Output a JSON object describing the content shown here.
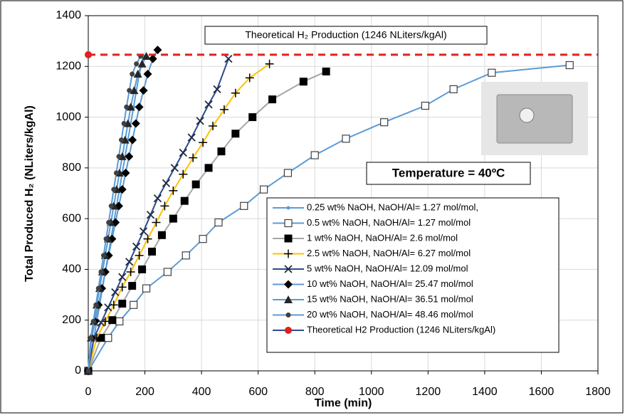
{
  "chart_data": {
    "type": "line",
    "annotation": "Theoretical H₂ Production (1246 NLiters/kgAl)",
    "temperature_label": "Temperature = 40ºC",
    "x_label": "Time (min)",
    "y_label": "Total Produced H₂ (NLiters/kgAl)",
    "xlim": [
      0,
      1800
    ],
    "xticks": [
      0,
      200,
      400,
      600,
      800,
      1000,
      1200,
      1400,
      1600,
      1800
    ],
    "ylim": [
      0,
      1400
    ],
    "yticks": [
      0,
      200,
      400,
      600,
      800,
      1000,
      1200,
      1400
    ],
    "grid": true,
    "series": [
      {
        "name": "0.25 wt% NaOH, NaOH/Al= 1.27 mol/mol,",
        "color": "#5b9bd5",
        "marker": "dot",
        "marker_color": "#5b9bd5",
        "x": [
          0,
          20,
          40,
          60,
          80,
          100,
          120,
          140,
          160,
          180,
          195
        ],
        "values": [
          0,
          130,
          260,
          390,
          520,
          650,
          780,
          910,
          1040,
          1170,
          1240
        ]
      },
      {
        "name": "0.5 wt% NaOH, NaOH/Al= 1.27 mol/mol",
        "color": "#5b9bd5",
        "marker": "square-open",
        "marker_color": "#404040",
        "x": [
          0,
          70,
          110,
          160,
          205,
          280,
          345,
          405,
          460,
          550,
          620,
          705,
          800,
          910,
          1045,
          1190,
          1290,
          1425,
          1700
        ],
        "values": [
          0,
          130,
          195,
          260,
          325,
          390,
          455,
          520,
          585,
          650,
          715,
          780,
          850,
          915,
          980,
          1045,
          1110,
          1175,
          1205
        ]
      },
      {
        "name": "1 wt% NaOH, NaOH/Al= 2.6 mol/mol",
        "color": "#a6a6a6",
        "marker": "square",
        "marker_color": "#000000",
        "x": [
          0,
          45,
          85,
          120,
          155,
          190,
          225,
          260,
          300,
          340,
          380,
          425,
          470,
          520,
          580,
          650,
          760,
          840
        ],
        "values": [
          0,
          130,
          200,
          265,
          335,
          400,
          470,
          535,
          600,
          670,
          735,
          800,
          865,
          935,
          1000,
          1070,
          1140,
          1180
        ]
      },
      {
        "name": "2.5 wt% NaOH, NaOH/Al= 6.27 mol/mol",
        "color": "#ffc000",
        "marker": "plus",
        "marker_color": "#000000",
        "x": [
          0,
          30,
          60,
          90,
          120,
          150,
          180,
          210,
          240,
          270,
          300,
          335,
          370,
          405,
          440,
          480,
          520,
          570,
          640
        ],
        "values": [
          0,
          130,
          195,
          260,
          330,
          390,
          455,
          520,
          585,
          650,
          710,
          775,
          840,
          900,
          965,
          1030,
          1095,
          1155,
          1210
        ]
      },
      {
        "name": "5 wt% NaOH, NaOH/Al= 12.09 mol/mol",
        "color": "#2e4a8c",
        "marker": "x",
        "marker_color": "#1f2a44",
        "x": [
          0,
          20,
          45,
          70,
          95,
          120,
          145,
          170,
          195,
          220,
          245,
          275,
          305,
          335,
          365,
          395,
          425,
          455,
          495
        ],
        "values": [
          0,
          130,
          190,
          250,
          310,
          370,
          430,
          490,
          550,
          615,
          680,
          740,
          800,
          860,
          920,
          985,
          1050,
          1110,
          1230
        ]
      },
      {
        "name": "10 wt% NaOH, NaOH/Al= 25.47 mol/mol",
        "color": "#5b9bd5",
        "marker": "diamond",
        "marker_color": "#000000",
        "x": [
          0,
          12,
          24,
          36,
          48,
          60,
          72,
          84,
          96,
          108,
          120,
          132,
          144,
          156,
          168,
          180,
          195,
          210,
          228,
          245
        ],
        "values": [
          0,
          130,
          195,
          260,
          325,
          390,
          455,
          520,
          585,
          650,
          715,
          780,
          845,
          910,
          975,
          1040,
          1105,
          1170,
          1230,
          1265
        ]
      },
      {
        "name": "15 wt% NaOH, NaOH/Al= 36.51 mol/mol",
        "color": "#5b9bd5",
        "marker": "triangle",
        "marker_color": "#262626",
        "x": [
          0,
          10,
          20,
          30,
          40,
          50,
          60,
          70,
          80,
          90,
          100,
          110,
          120,
          130,
          140,
          150,
          162,
          175,
          190,
          205
        ],
        "values": [
          0,
          130,
          195,
          260,
          325,
          390,
          455,
          520,
          585,
          650,
          715,
          780,
          845,
          910,
          975,
          1040,
          1105,
          1170,
          1210,
          1240
        ]
      },
      {
        "name": "20 wt% NaOH, NaOH/Al= 48.46 mol/mol",
        "color": "#5b9bd5",
        "marker": "circle",
        "marker_color": "#404040",
        "x": [
          0,
          9,
          18,
          27,
          36,
          45,
          54,
          63,
          72,
          81,
          90,
          99,
          108,
          117,
          126,
          135,
          145,
          155,
          170,
          185
        ],
        "values": [
          0,
          130,
          195,
          260,
          325,
          390,
          455,
          520,
          585,
          650,
          715,
          780,
          845,
          910,
          975,
          1040,
          1105,
          1170,
          1210,
          1240
        ]
      }
    ],
    "reference": {
      "name": "Theoretical H2 Production (1246 NLiters/kgAl)",
      "value": 1246,
      "color": "#e02020"
    }
  }
}
